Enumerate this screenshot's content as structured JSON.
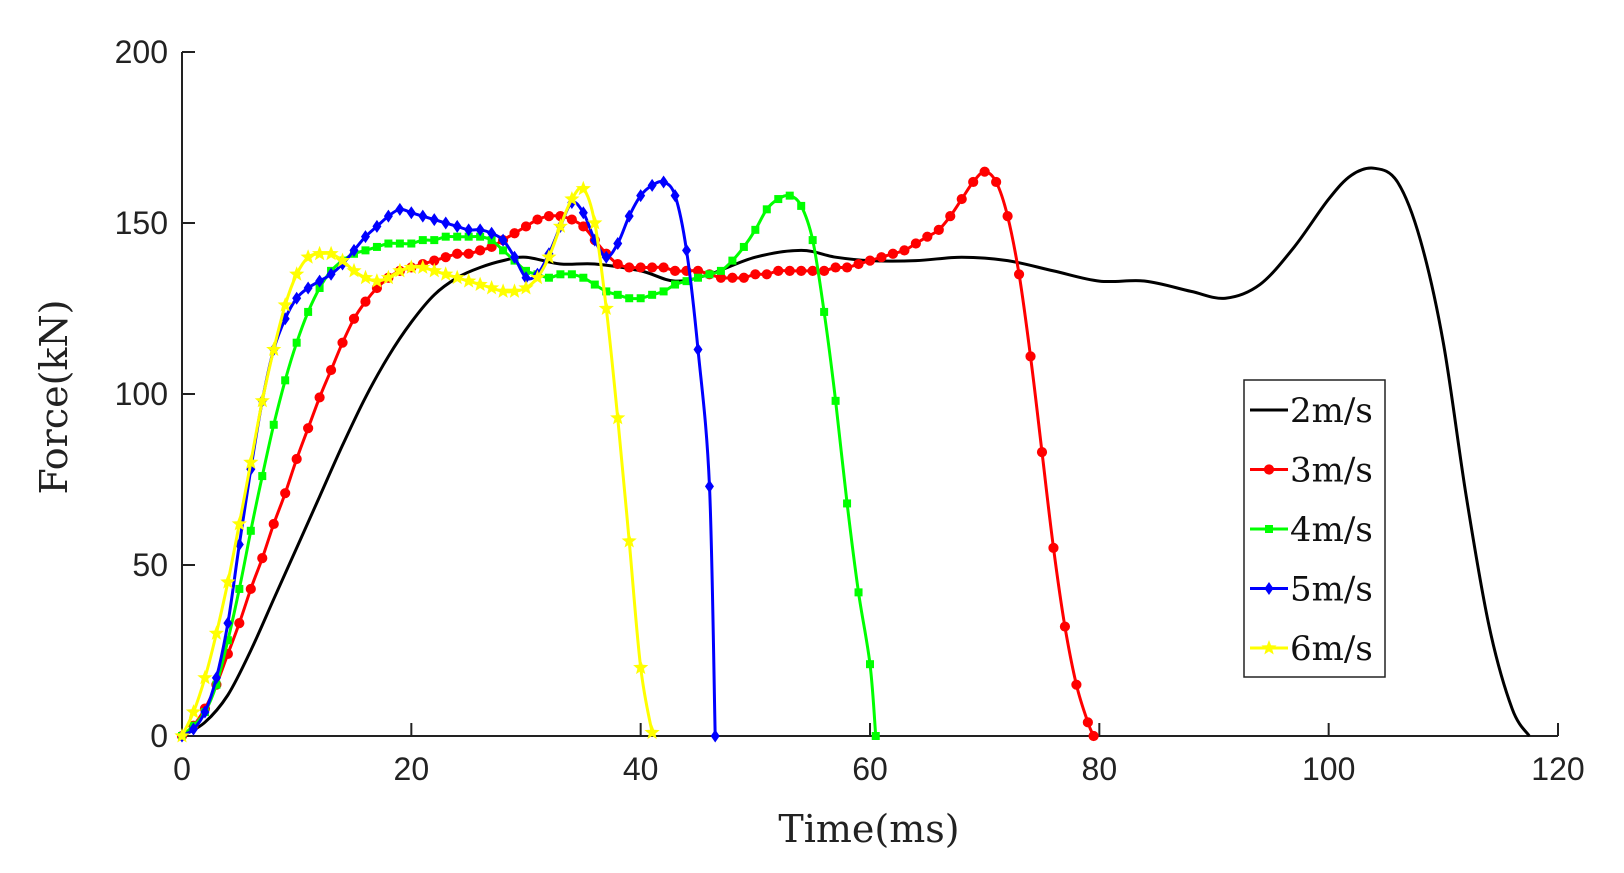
{
  "chart_data": {
    "type": "line",
    "title": "",
    "xlabel": "Time(ms)",
    "ylabel": "Force(kN)",
    "xlim": [
      0,
      120
    ],
    "ylim": [
      0,
      200
    ],
    "xticks": [
      0,
      20,
      40,
      60,
      80,
      100,
      120
    ],
    "yticks": [
      0,
      50,
      100,
      150,
      200
    ],
    "grid": false,
    "legend_position": "right",
    "series": [
      {
        "name": "2m/s",
        "color": "#000000",
        "marker": "none",
        "x": [
          0,
          2,
          4,
          6,
          8,
          10,
          12,
          14,
          16,
          18,
          20,
          22,
          24,
          26,
          28,
          30,
          33,
          36,
          40,
          43,
          46,
          50,
          54,
          57,
          60,
          64,
          68,
          72,
          76,
          80,
          84,
          88,
          91,
          94,
          97,
          100,
          102,
          104,
          106,
          108,
          110,
          112,
          114,
          116,
          117.5
        ],
        "y": [
          0,
          4,
          12,
          25,
          40,
          55,
          70,
          85,
          99,
          111,
          121,
          129,
          134,
          137,
          139,
          140,
          138,
          138,
          136,
          133,
          135,
          140,
          142,
          140,
          139,
          139,
          140,
          139,
          136,
          133,
          133,
          130,
          128,
          132,
          143,
          157,
          164,
          166,
          162,
          145,
          115,
          70,
          32,
          8,
          0
        ]
      },
      {
        "name": "3m/s",
        "color": "#ff0000",
        "marker": "circle",
        "x": [
          0,
          1,
          2,
          3,
          4,
          5,
          6,
          7,
          8,
          9,
          10,
          11,
          12,
          13,
          14,
          15,
          16,
          17,
          18,
          19,
          20,
          21,
          22,
          23,
          24,
          25,
          26,
          27,
          28,
          29,
          30,
          31,
          32,
          33,
          34,
          35,
          36,
          37,
          38,
          39,
          40,
          41,
          42,
          43,
          44,
          45,
          46,
          47,
          48,
          49,
          50,
          51,
          52,
          53,
          54,
          55,
          56,
          57,
          58,
          59,
          60,
          61,
          62,
          63,
          64,
          65,
          66,
          67,
          68,
          69,
          70,
          71,
          72,
          73,
          74,
          75,
          76,
          77,
          78,
          79,
          79.5
        ],
        "y": [
          0,
          3,
          8,
          15,
          24,
          33,
          43,
          52,
          62,
          71,
          81,
          90,
          99,
          107,
          115,
          122,
          127,
          131,
          134,
          136,
          137,
          138,
          139,
          140,
          141,
          141,
          142,
          143,
          145,
          147,
          149,
          151,
          152,
          152,
          151,
          149,
          145,
          141,
          138,
          137,
          137,
          137,
          137,
          136,
          136,
          136,
          135,
          134,
          134,
          134,
          135,
          135,
          136,
          136,
          136,
          136,
          136,
          137,
          137,
          138,
          139,
          140,
          141,
          142,
          144,
          146,
          148,
          152,
          157,
          162,
          165,
          162,
          152,
          135,
          111,
          83,
          55,
          32,
          15,
          4,
          0
        ]
      },
      {
        "name": "4m/s",
        "color": "#00ff00",
        "marker": "square",
        "x": [
          0,
          1,
          2,
          3,
          4,
          5,
          6,
          7,
          8,
          9,
          10,
          11,
          12,
          13,
          14,
          15,
          16,
          17,
          18,
          19,
          20,
          21,
          22,
          23,
          24,
          25,
          26,
          27,
          28,
          29,
          30,
          31,
          32,
          33,
          34,
          35,
          36,
          37,
          38,
          39,
          40,
          41,
          42,
          43,
          44,
          45,
          46,
          47,
          48,
          49,
          50,
          51,
          52,
          53,
          54,
          55,
          56,
          57,
          58,
          59,
          60,
          60.5
        ],
        "y": [
          0,
          3,
          7,
          15,
          28,
          43,
          60,
          76,
          91,
          104,
          115,
          124,
          131,
          136,
          139,
          141,
          142,
          143,
          144,
          144,
          144,
          145,
          145,
          146,
          146,
          146,
          146,
          145,
          142,
          139,
          136,
          135,
          134,
          135,
          135,
          134,
          132,
          130,
          129,
          128,
          128,
          129,
          130,
          132,
          133,
          134,
          135,
          136,
          139,
          143,
          148,
          154,
          157,
          158,
          155,
          145,
          124,
          98,
          68,
          42,
          21,
          0
        ]
      },
      {
        "name": "5m/s",
        "color": "#0000ff",
        "marker": "diamond",
        "x": [
          0,
          1,
          2,
          3,
          4,
          5,
          6,
          7,
          8,
          9,
          10,
          11,
          12,
          13,
          14,
          15,
          16,
          17,
          18,
          19,
          20,
          21,
          22,
          23,
          24,
          25,
          26,
          27,
          28,
          29,
          30,
          31,
          32,
          33,
          34,
          35,
          36,
          37,
          38,
          39,
          40,
          41,
          42,
          43,
          44,
          45,
          46,
          46.5
        ],
        "y": [
          0,
          2,
          7,
          17,
          33,
          56,
          78,
          98,
          113,
          122,
          128,
          131,
          133,
          135,
          138,
          142,
          146,
          149,
          152,
          154,
          153,
          152,
          151,
          150,
          149,
          148,
          148,
          147,
          145,
          140,
          134,
          135,
          141,
          149,
          156,
          153,
          145,
          140,
          144,
          152,
          158,
          161,
          162,
          158,
          142,
          113,
          73,
          0
        ]
      },
      {
        "name": "6m/s",
        "color": "#ffff00",
        "marker": "star",
        "x": [
          0,
          1,
          2,
          3,
          4,
          5,
          6,
          7,
          8,
          9,
          10,
          11,
          12,
          13,
          14,
          15,
          16,
          17,
          18,
          19,
          20,
          21,
          22,
          23,
          24,
          25,
          26,
          27,
          28,
          29,
          30,
          31,
          32,
          33,
          34,
          35,
          36,
          37,
          38,
          39,
          40,
          41
        ],
        "y": [
          0,
          7,
          17,
          30,
          45,
          62,
          80,
          98,
          113,
          126,
          135,
          140,
          141,
          141,
          139,
          136,
          134,
          133,
          134,
          136,
          137,
          137,
          136,
          135,
          134,
          133,
          132,
          131,
          130,
          130,
          131,
          134,
          140,
          149,
          157,
          160,
          150,
          125,
          93,
          57,
          20,
          1
        ]
      }
    ]
  }
}
